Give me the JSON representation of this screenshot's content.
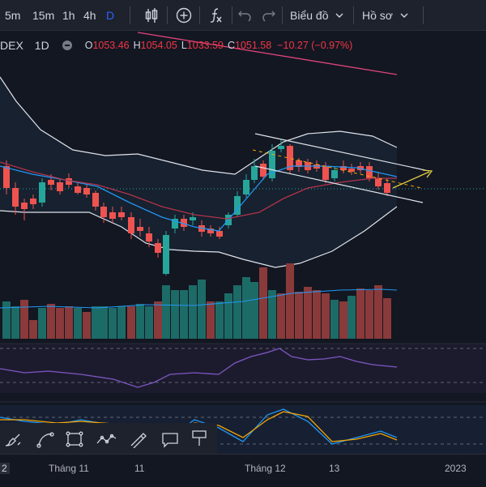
{
  "toolbar": {
    "intervals": [
      "5m",
      "15m",
      "1h",
      "4h",
      "D"
    ],
    "active_interval": "D",
    "chart_menu_label": "Biểu đồ",
    "profile_menu_label": "Hồ sơ",
    "icons": [
      "candles-icon",
      "add-indicator-icon",
      "fx-icon",
      "undo-icon",
      "chevron-down-icon"
    ]
  },
  "legend": {
    "symbol": "DEX",
    "interval": "1D",
    "open_label": "O",
    "open": "1053.46",
    "high_label": "H",
    "high": "1054.05",
    "low_label": "L",
    "low": "1033.59",
    "close_label": "C",
    "close": "1051.58",
    "change": "−10.27 (−0.97%)"
  },
  "time_axis": {
    "labels": [
      "2",
      "Tháng 11",
      "11",
      "Tháng 12",
      "13",
      "2023"
    ]
  },
  "drawing_tools": [
    "brush-icon",
    "curve-icon",
    "rectangle-icon",
    "path-icon",
    "pen-icon",
    "comment-icon",
    "pin-icon"
  ],
  "colors": {
    "background": "#131722",
    "up": "#26a69a",
    "down": "#ef5350",
    "accent": "#2962ff"
  }
}
